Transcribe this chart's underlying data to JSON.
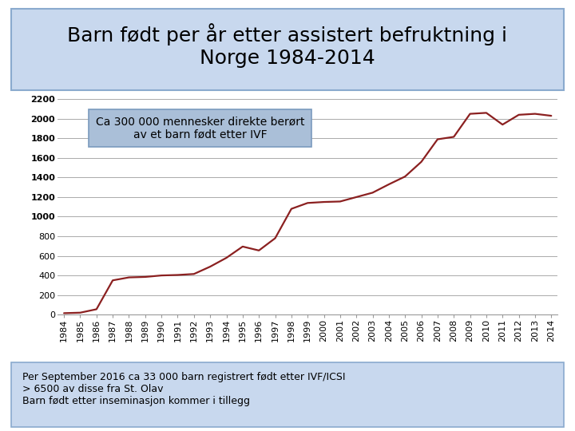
{
  "title": "Barn født per år etter assistert befruktning i\nNorge 1984-2014",
  "years": [
    1984,
    1985,
    1986,
    1987,
    1988,
    1989,
    1990,
    1991,
    1992,
    1993,
    1994,
    1995,
    1996,
    1997,
    1998,
    1999,
    2000,
    2001,
    2002,
    2003,
    2004,
    2005,
    2006,
    2007,
    2008,
    2009,
    2010,
    2011,
    2012,
    2013,
    2014
  ],
  "values": [
    15,
    20,
    55,
    350,
    380,
    385,
    400,
    405,
    415,
    490,
    580,
    695,
    655,
    780,
    1080,
    1140,
    1150,
    1155,
    1200,
    1245,
    1330,
    1410,
    1560,
    1790,
    1815,
    2050,
    2060,
    1940,
    2040,
    2050,
    2030
  ],
  "line_color": "#8B2020",
  "title_box_facecolor": "#C8D8EE",
  "title_box_edgecolor": "#8AAACE",
  "annotation_box_facecolor": "#AABFD8",
  "annotation_box_edgecolor": "#7A9ABE",
  "annotation_text": "Ca 300 000 mennesker direkte berørt\nav et barn født etter IVF",
  "footer_box_facecolor": "#C8D8EE",
  "footer_box_edgecolor": "#8AAACE",
  "footer_text": "Per September 2016 ca 33 000 barn registrert født etter IVF/ICSI\n> 6500 av disse fra St. Olav\nBarn født etter inseminasjon kommer i tillegg",
  "ylim": [
    0,
    2200
  ],
  "yticks": [
    0,
    200,
    400,
    600,
    800,
    1000,
    1200,
    1400,
    1600,
    1800,
    2000,
    2200
  ],
  "background_color": "#FFFFFF",
  "grid_color": "#AAAAAA",
  "title_fontsize": 18,
  "axis_fontsize": 8,
  "annotation_fontsize": 10,
  "footer_fontsize": 9
}
